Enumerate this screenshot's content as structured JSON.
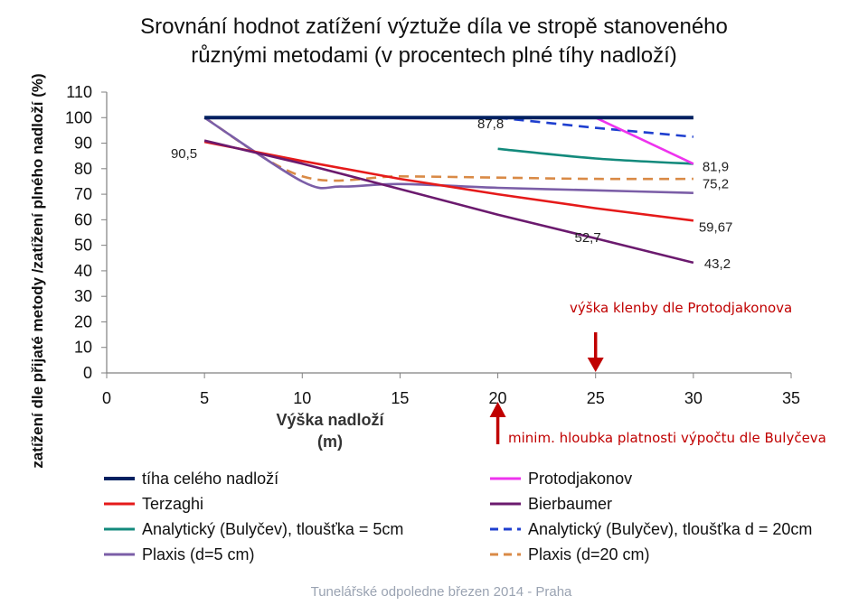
{
  "chart_data": {
    "type": "line",
    "title_lines": [
      "Srovnání hodnot zatížení výztuže díla ve stropě stanoveného",
      "různými metodami (v procentech plné tíhy nadloží)"
    ],
    "xlabel_lines": [
      "Výška nadloží",
      "(m)"
    ],
    "ylabel": "zatížení dle přijaté metody /zatížení plného nadloží (%)",
    "xlim": [
      0,
      35
    ],
    "ylim": [
      0,
      110
    ],
    "xticks": [
      "0",
      "5",
      "10",
      "15",
      "20",
      "25",
      "30",
      "35"
    ],
    "yticks": [
      "0",
      "10",
      "20",
      "30",
      "40",
      "50",
      "60",
      "70",
      "80",
      "90",
      "100",
      "110"
    ],
    "grid": false,
    "legend_position": "bottom",
    "series": [
      {
        "name": "tíha celého nadloží",
        "color": "#002060",
        "dash": "solid",
        "smooth": false,
        "x": [
          5,
          30
        ],
        "y": [
          100,
          100
        ]
      },
      {
        "name": "Terzaghi",
        "color": "#e51a1a",
        "dash": "solid",
        "smooth": false,
        "x": [
          5,
          10,
          15,
          20,
          25,
          30
        ],
        "y": [
          90.5,
          83,
          76,
          70,
          64.5,
          59.67
        ]
      },
      {
        "name": "Analytický (Bulyčev), tloušťka = 5cm",
        "color": "#138a7c",
        "dash": "solid",
        "smooth": true,
        "x": [
          20,
          25,
          30
        ],
        "y": [
          87.8,
          84,
          81.9
        ]
      },
      {
        "name": "Plaxis (d=5 cm)",
        "color": "#7b5ea7",
        "dash": "solid",
        "smooth": true,
        "x": [
          5,
          10,
          12,
          15,
          20,
          25,
          30
        ],
        "y": [
          100,
          75,
          73,
          74,
          72.5,
          71.5,
          70.5
        ]
      },
      {
        "name": "Protodjakonov",
        "color": "#ee33ee",
        "dash": "solid",
        "smooth": false,
        "x": [
          25,
          30
        ],
        "y": [
          100,
          81.9
        ]
      },
      {
        "name": "Bierbaumer",
        "color": "#6b1a6e",
        "dash": "solid",
        "smooth": false,
        "x": [
          5,
          10,
          15,
          20,
          25,
          30
        ],
        "y": [
          91,
          82,
          72,
          62,
          52.7,
          43.2
        ]
      },
      {
        "name": "Analytický (Bulyčev), tloušťka d = 20cm",
        "color": "#1f3fcf",
        "dash": "dashed",
        "smooth": false,
        "x": [
          20,
          25,
          30
        ],
        "y": [
          100,
          96,
          92.5
        ]
      },
      {
        "name": "Plaxis (d=20 cm)",
        "color": "#d98a46",
        "dash": "dashed",
        "smooth": true,
        "x": [
          5,
          10,
          15,
          20,
          25,
          30
        ],
        "y": [
          100,
          77,
          77,
          76.5,
          76,
          76
        ]
      }
    ],
    "data_labels": [
      {
        "text": "90,5",
        "x": 5,
        "y": 90.5
      },
      {
        "text": "87,8",
        "x": 20,
        "y": 87.8
      },
      {
        "text": "81,9",
        "x": 30,
        "y": 81.9
      },
      {
        "text": "75,2",
        "x": 30,
        "y": 75.2
      },
      {
        "text": "59,67",
        "x": 30,
        "y": 59.67
      },
      {
        "text": "52,7",
        "x": 25,
        "y": 52.7
      },
      {
        "text": "43,2",
        "x": 30,
        "y": 43.2
      }
    ],
    "annotations": [
      {
        "text": "výška klenby dle Protodjakonova",
        "arrow_x": 25,
        "arrow_direction": "down"
      },
      {
        "text": "minim. hloubka platnosti výpočtu dle Bulyčeva",
        "arrow_x": 20,
        "arrow_direction": "up"
      }
    ]
  },
  "footer": "Tunelářské odpoledne březen 2014 - Praha"
}
